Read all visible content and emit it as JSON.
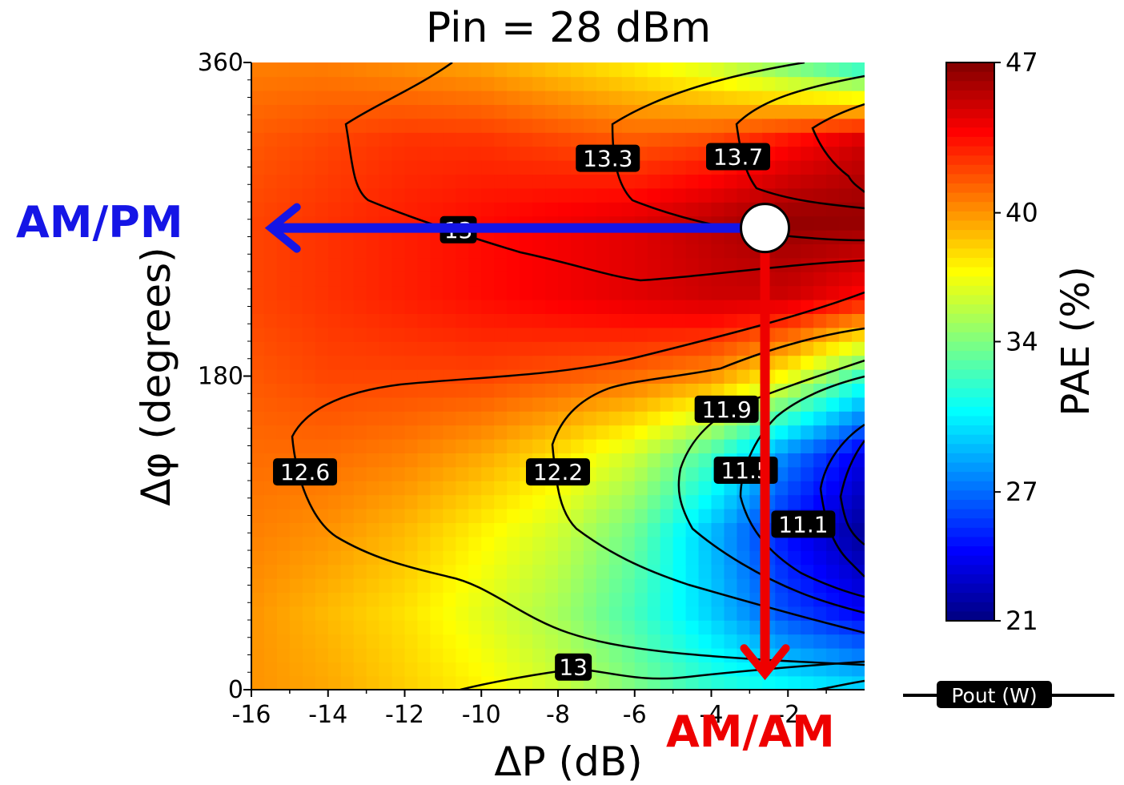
{
  "chart_data": {
    "type": "heatmap",
    "title": "Pin = 28 dBm",
    "xlabel": "ΔP (dB)",
    "ylabel": "Δφ (degrees)",
    "xlim": [
      -16,
      0
    ],
    "ylim": [
      0,
      360
    ],
    "x_ticks": [
      "-16",
      "-14",
      "-12",
      "-10",
      "-8",
      "-6",
      "-4",
      "-2"
    ],
    "y_ticks": [
      "0",
      "180",
      "360"
    ],
    "colorbar": {
      "label": "PAE (%)",
      "min": 21,
      "max": 47,
      "ticks": [
        "21",
        "27",
        "34",
        "40",
        "47"
      ],
      "colormap": "jet"
    },
    "contour_legend": "Pout (W)",
    "contour_labels": [
      {
        "text": "13.3",
        "x": -6.7,
        "y": 305
      },
      {
        "text": "13.7",
        "x": -3.3,
        "y": 306
      },
      {
        "text": "13",
        "x": -10.6,
        "y": 264
      },
      {
        "text": "12.6",
        "x": -14.6,
        "y": 125
      },
      {
        "text": "12.2",
        "x": -8,
        "y": 125
      },
      {
        "text": "11.9",
        "x": -3.6,
        "y": 161
      },
      {
        "text": "11.5",
        "x": -3.1,
        "y": 126
      },
      {
        "text": "11.1",
        "x": -1.6,
        "y": 95
      },
      {
        "text": "13",
        "x": -7.6,
        "y": 13
      }
    ],
    "pae_grid": {
      "x": [
        -16,
        -14,
        -12,
        -10,
        -8,
        -6,
        -4,
        -2,
        0
      ],
      "y": [
        0,
        45,
        90,
        135,
        180,
        225,
        270,
        315,
        360
      ],
      "z": [
        [
          40,
          39.5,
          38.5,
          37.5,
          36,
          34,
          32,
          31,
          30
        ],
        [
          40,
          39,
          38,
          36.5,
          35,
          32.5,
          29.5,
          26,
          24
        ],
        [
          40.5,
          40,
          39,
          37.5,
          36,
          33.5,
          29,
          24.5,
          21.5
        ],
        [
          41,
          41,
          40.5,
          39.5,
          38,
          36,
          32.5,
          27.5,
          23.5
        ],
        [
          41.5,
          42,
          42,
          42,
          41.5,
          41,
          40,
          37,
          32
        ],
        [
          42,
          42.5,
          43,
          43.5,
          44,
          44.5,
          45,
          45,
          43.5
        ],
        [
          42,
          42.5,
          43,
          43.5,
          44,
          44.5,
          45.5,
          46.5,
          46.5
        ],
        [
          41.5,
          42,
          42.5,
          42.5,
          42,
          41.5,
          42,
          43.5,
          45
        ],
        [
          40.5,
          40.5,
          40,
          39.5,
          38.5,
          37.5,
          36,
          33.5,
          31
        ]
      ]
    },
    "marker": {
      "x": -2.6,
      "y": 265
    },
    "annotations": [
      {
        "text": "AM/PM",
        "color": "#1515e6"
      },
      {
        "text": "AM/AM",
        "color": "#ee0000"
      }
    ]
  }
}
